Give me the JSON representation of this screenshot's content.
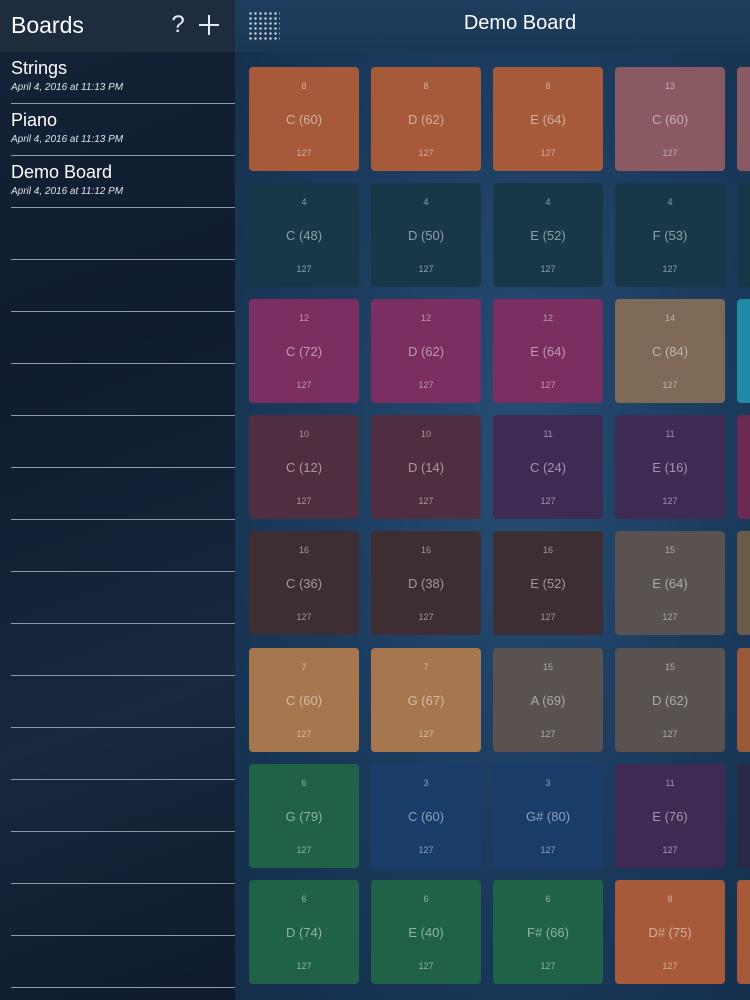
{
  "sidebar": {
    "title": "Boards",
    "help_label": "?",
    "items": [
      {
        "name": "Strings",
        "date": "April 4, 2016 at 11:13 PM"
      },
      {
        "name": "Piano",
        "date": "April 4, 2016 at 11:13 PM"
      },
      {
        "name": "Demo Board",
        "date": "April 4, 2016 at 11:12 PM"
      },
      {
        "name": "",
        "date": ""
      },
      {
        "name": "",
        "date": ""
      },
      {
        "name": "",
        "date": ""
      },
      {
        "name": "",
        "date": ""
      },
      {
        "name": "",
        "date": ""
      },
      {
        "name": "",
        "date": ""
      },
      {
        "name": "",
        "date": ""
      },
      {
        "name": "",
        "date": ""
      },
      {
        "name": "",
        "date": ""
      },
      {
        "name": "",
        "date": ""
      },
      {
        "name": "",
        "date": ""
      },
      {
        "name": "",
        "date": ""
      },
      {
        "name": "",
        "date": ""
      },
      {
        "name": "",
        "date": ""
      },
      {
        "name": "",
        "date": ""
      },
      {
        "name": "",
        "date": ""
      }
    ]
  },
  "header": {
    "title": "Demo Board",
    "menu_icon": "grid-menu-icon"
  },
  "pads": [
    [
      {
        "channel": "8",
        "note": "C (60)",
        "velocity": "127",
        "color": "#a65a3a"
      },
      {
        "channel": "8",
        "note": "D (62)",
        "velocity": "127",
        "color": "#a65a3a"
      },
      {
        "channel": "8",
        "note": "E (64)",
        "velocity": "127",
        "color": "#a65a3a"
      },
      {
        "channel": "13",
        "note": "C (60)",
        "velocity": "127",
        "color": "#8a5a62"
      },
      {
        "channel": "",
        "note": "",
        "velocity": "",
        "color": "#8a5a62"
      }
    ],
    [
      {
        "channel": "4",
        "note": "C (48)",
        "velocity": "127",
        "color": "#18384a"
      },
      {
        "channel": "4",
        "note": "D (50)",
        "velocity": "127",
        "color": "#18384a"
      },
      {
        "channel": "4",
        "note": "E (52)",
        "velocity": "127",
        "color": "#18384a"
      },
      {
        "channel": "4",
        "note": "F (53)",
        "velocity": "127",
        "color": "#18384a"
      },
      {
        "channel": "",
        "note": "",
        "velocity": "",
        "color": "#18384a"
      }
    ],
    [
      {
        "channel": "12",
        "note": "C (72)",
        "velocity": "127",
        "color": "#7a2e62"
      },
      {
        "channel": "12",
        "note": "D (62)",
        "velocity": "127",
        "color": "#7a2e62"
      },
      {
        "channel": "12",
        "note": "E (64)",
        "velocity": "127",
        "color": "#7a2e62"
      },
      {
        "channel": "14",
        "note": "C (84)",
        "velocity": "127",
        "color": "#7e6a56"
      },
      {
        "channel": "",
        "note": "",
        "velocity": "",
        "color": "#1f8aa6"
      }
    ],
    [
      {
        "channel": "10",
        "note": "C (12)",
        "velocity": "127",
        "color": "#4e2e40"
      },
      {
        "channel": "10",
        "note": "D (14)",
        "velocity": "127",
        "color": "#4e2e40"
      },
      {
        "channel": "11",
        "note": "C (24)",
        "velocity": "127",
        "color": "#3e2a52"
      },
      {
        "channel": "11",
        "note": "E (16)",
        "velocity": "127",
        "color": "#3e2a52"
      },
      {
        "channel": "",
        "note": "",
        "velocity": "",
        "color": "#6a2a52"
      }
    ],
    [
      {
        "channel": "16",
        "note": "C (36)",
        "velocity": "127",
        "color": "#3c2e32"
      },
      {
        "channel": "16",
        "note": "D (38)",
        "velocity": "127",
        "color": "#3c2e32"
      },
      {
        "channel": "16",
        "note": "E (52)",
        "velocity": "127",
        "color": "#3c2e32"
      },
      {
        "channel": "15",
        "note": "E (64)",
        "velocity": "127",
        "color": "#5a5250"
      },
      {
        "channel": "",
        "note": "",
        "velocity": "",
        "color": "#6a5a48"
      }
    ],
    [
      {
        "channel": "7",
        "note": "C (60)",
        "velocity": "127",
        "color": "#a6764e"
      },
      {
        "channel": "7",
        "note": "G (67)",
        "velocity": "127",
        "color": "#a6764e"
      },
      {
        "channel": "15",
        "note": "A (69)",
        "velocity": "127",
        "color": "#5a5250"
      },
      {
        "channel": "15",
        "note": "D (62)",
        "velocity": "127",
        "color": "#5a5250"
      },
      {
        "channel": "",
        "note": "",
        "velocity": "",
        "color": "#9a5a3a"
      }
    ],
    [
      {
        "channel": "6",
        "note": "G (79)",
        "velocity": "127",
        "color": "#1f6248"
      },
      {
        "channel": "3",
        "note": "C (60)",
        "velocity": "127",
        "color": "#1a3c68"
      },
      {
        "channel": "3",
        "note": "G# (80)",
        "velocity": "127",
        "color": "#1a3c68"
      },
      {
        "channel": "11",
        "note": "E (76)",
        "velocity": "127",
        "color": "#3e2a52"
      },
      {
        "channel": "",
        "note": "",
        "velocity": "",
        "color": "#2a2a48"
      }
    ],
    [
      {
        "channel": "6",
        "note": "D (74)",
        "velocity": "127",
        "color": "#1f6248"
      },
      {
        "channel": "6",
        "note": "E (40)",
        "velocity": "127",
        "color": "#1f6248"
      },
      {
        "channel": "6",
        "note": "F# (66)",
        "velocity": "127",
        "color": "#1f6248"
      },
      {
        "channel": "8",
        "note": "D# (75)",
        "velocity": "127",
        "color": "#a65a3a"
      },
      {
        "channel": "",
        "note": "",
        "velocity": "",
        "color": "#a65a3a"
      }
    ]
  ]
}
